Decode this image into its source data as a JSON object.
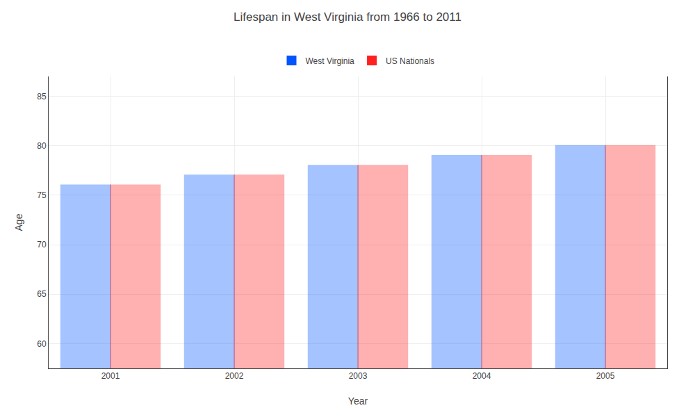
{
  "chart_data": {
    "type": "bar",
    "title": "Lifespan in West Virginia from 1966 to 2011",
    "x_label": "Year",
    "y_label": "Age",
    "categories": [
      "2001",
      "2002",
      "2003",
      "2004",
      "2005"
    ],
    "series": [
      {
        "name": "West Virginia",
        "color": "#0055ff",
        "values": [
          76,
          77,
          78,
          79,
          80
        ]
      },
      {
        "name": "US Nationals",
        "color": "#ff2020",
        "values": [
          76,
          77,
          78,
          79,
          80
        ]
      }
    ],
    "ylim": [
      57.5,
      87
    ],
    "yticks": [
      60,
      65,
      70,
      75,
      80,
      85
    ],
    "grid": true,
    "legend": "top"
  }
}
